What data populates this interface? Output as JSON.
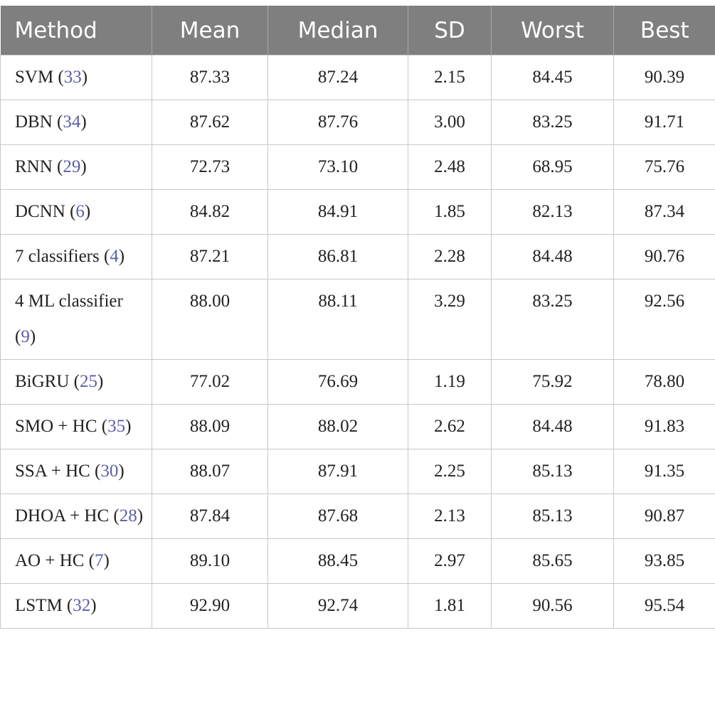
{
  "table": {
    "header": [
      "Method",
      "Mean",
      "Median",
      "SD",
      "Worst",
      "Best"
    ],
    "rows": [
      [
        [
          "SVM (",
          "33",
          ")"
        ],
        "87.33",
        "87.24",
        "2.15",
        "84.45",
        "90.39"
      ],
      [
        [
          "DBN (",
          "34",
          ")"
        ],
        "87.62",
        "87.76",
        "3.00",
        "83.25",
        "91.71"
      ],
      [
        [
          "RNN (",
          "29",
          ")"
        ],
        "72.73",
        "73.10",
        "2.48",
        "68.95",
        "75.76"
      ],
      [
        [
          "DCNN (",
          "6",
          ")"
        ],
        "84.82",
        "84.91",
        "1.85",
        "82.13",
        "87.34"
      ],
      [
        [
          "7 classifiers (",
          "4",
          ")"
        ],
        "87.21",
        "86.81",
        "2.28",
        "84.48",
        "90.76"
      ],
      [
        [
          "4 ML classifier (",
          "9",
          ")"
        ],
        "88.00",
        "88.11",
        "3.29",
        "83.25",
        "92.56"
      ],
      [
        [
          "BiGRU (",
          "25",
          ")"
        ],
        "77.02",
        "76.69",
        "1.19",
        "75.92",
        "78.80"
      ],
      [
        [
          "SMO + HC (",
          "35",
          ")"
        ],
        "88.09",
        "88.02",
        "2.62",
        "84.48",
        "91.83"
      ],
      [
        [
          "SSA + HC (",
          "30",
          ")"
        ],
        "88.07",
        "87.91",
        "2.25",
        "85.13",
        "91.35"
      ],
      [
        [
          "DHOA + HC (",
          "28",
          ")"
        ],
        "87.84",
        "87.68",
        "2.13",
        "85.13",
        "90.87"
      ],
      [
        [
          "AO + HC (",
          "7",
          ")"
        ],
        "89.10",
        "88.45",
        "2.97",
        "85.65",
        "93.85"
      ],
      [
        [
          "LSTM (",
          "32",
          ")"
        ],
        "92.90",
        "92.74",
        "1.81",
        "90.56",
        "95.54"
      ]
    ]
  }
}
